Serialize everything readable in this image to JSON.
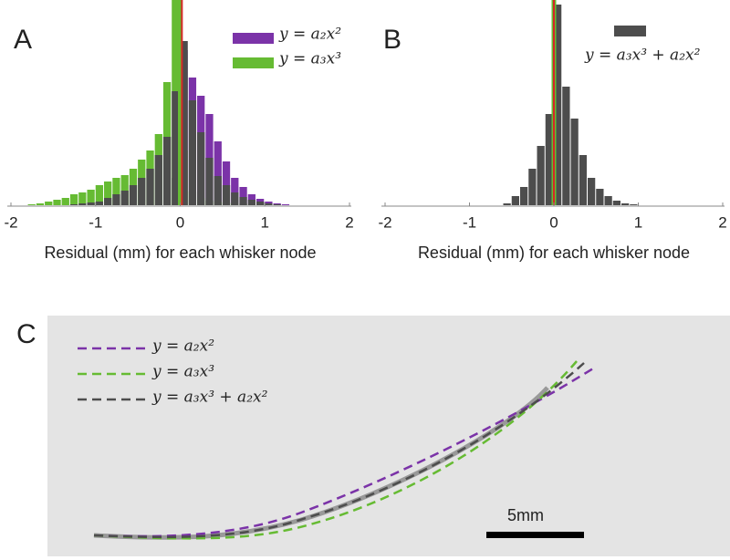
{
  "chart_data": [
    {
      "type": "histogram",
      "panel": "A",
      "xlabel": "Residual (mm) for each whisker node",
      "bins": [
        -1.8,
        -1.7,
        -1.6,
        -1.5,
        -1.4,
        -1.3,
        -1.2,
        -1.1,
        -1.0,
        -0.9,
        -0.8,
        -0.7,
        -0.6,
        -0.5,
        -0.4,
        -0.3,
        -0.2,
        -0.1,
        0.0,
        0.1,
        0.2,
        0.3,
        0.4,
        0.5,
        0.6,
        0.7,
        0.8,
        0.9,
        1.0,
        1.1,
        1.2,
        1.3,
        1.4,
        1.5,
        1.6,
        1.7,
        1.8
      ],
      "series": [
        {
          "name": "y = a₂x²",
          "color": "#7b33a8",
          "values": [
            0,
            0,
            0,
            0,
            0,
            0,
            0,
            0,
            0,
            0,
            0,
            0,
            0,
            0,
            0,
            0,
            0,
            30,
            170,
            140,
            120,
            100,
            70,
            48,
            30,
            20,
            12,
            7,
            4,
            2,
            1,
            0,
            0,
            0,
            0,
            0
          ]
        },
        {
          "name": "y = a₃x³",
          "color": "#66bb33",
          "values": [
            1,
            2,
            4,
            6,
            8,
            12,
            14,
            17,
            22,
            26,
            30,
            33,
            40,
            50,
            60,
            78,
            135,
            225,
            60,
            15,
            8,
            5,
            4,
            3,
            2,
            2,
            1,
            1,
            0,
            0,
            0,
            0,
            0,
            0,
            0,
            0
          ]
        },
        {
          "color": "#4d4d4d",
          "values": [
            0,
            0,
            0,
            0,
            0,
            1,
            2,
            3,
            4,
            8,
            12,
            16,
            22,
            30,
            40,
            55,
            75,
            125,
            180,
            115,
            80,
            52,
            32,
            22,
            14,
            9,
            6,
            4,
            2,
            1,
            0,
            0,
            0,
            0,
            0,
            0
          ]
        }
      ],
      "vlines": [
        {
          "x": 0,
          "color": "#66bb33"
        },
        {
          "x": 0.02,
          "color": "#d62728"
        }
      ],
      "xlim": [
        -2,
        2
      ],
      "xticks": [
        -2,
        -1,
        0,
        1,
        2
      ],
      "ylim": [
        0,
        225
      ]
    },
    {
      "type": "histogram",
      "panel": "B",
      "xlabel": "Residual (mm) for each whisker node",
      "bins": [
        -1.8,
        -1.7,
        -1.6,
        -1.5,
        -1.4,
        -1.3,
        -1.2,
        -1.1,
        -1.0,
        -0.9,
        -0.8,
        -0.7,
        -0.6,
        -0.5,
        -0.4,
        -0.3,
        -0.2,
        -0.1,
        0.0,
        0.1,
        0.2,
        0.3,
        0.4,
        0.5,
        0.6,
        0.7,
        0.8,
        0.9,
        1.0,
        1.1,
        1.2,
        1.3,
        1.4,
        1.5,
        1.6,
        1.7,
        1.8
      ],
      "series": [
        {
          "name": "y = a₃x³ + a₂x²",
          "color": "#4d4d4d",
          "values": [
            0,
            0,
            0,
            0,
            0,
            0,
            0,
            0,
            0,
            0,
            0,
            0,
            2,
            10,
            20,
            40,
            65,
            100,
            220,
            130,
            95,
            55,
            30,
            18,
            10,
            5,
            2,
            1,
            0,
            0,
            0,
            0,
            0,
            0,
            0,
            0
          ]
        }
      ],
      "vlines": [
        {
          "x": 0,
          "color": "#66bb33"
        },
        {
          "x": 0,
          "color": "#d62728"
        }
      ],
      "xlim": [
        -2,
        2
      ],
      "xticks": [
        -2,
        -1,
        0,
        1,
        2
      ],
      "ylim": [
        0,
        225
      ]
    },
    {
      "type": "image",
      "panel": "C",
      "series": [
        {
          "name": "y = a₂x²",
          "color": "#7b33a8"
        },
        {
          "name": "y = a₃x³",
          "color": "#66bb33"
        },
        {
          "name": "y = a₃x³ + a₂x²",
          "color": "#4d4d4d"
        }
      ],
      "scalebar": "5mm"
    }
  ]
}
